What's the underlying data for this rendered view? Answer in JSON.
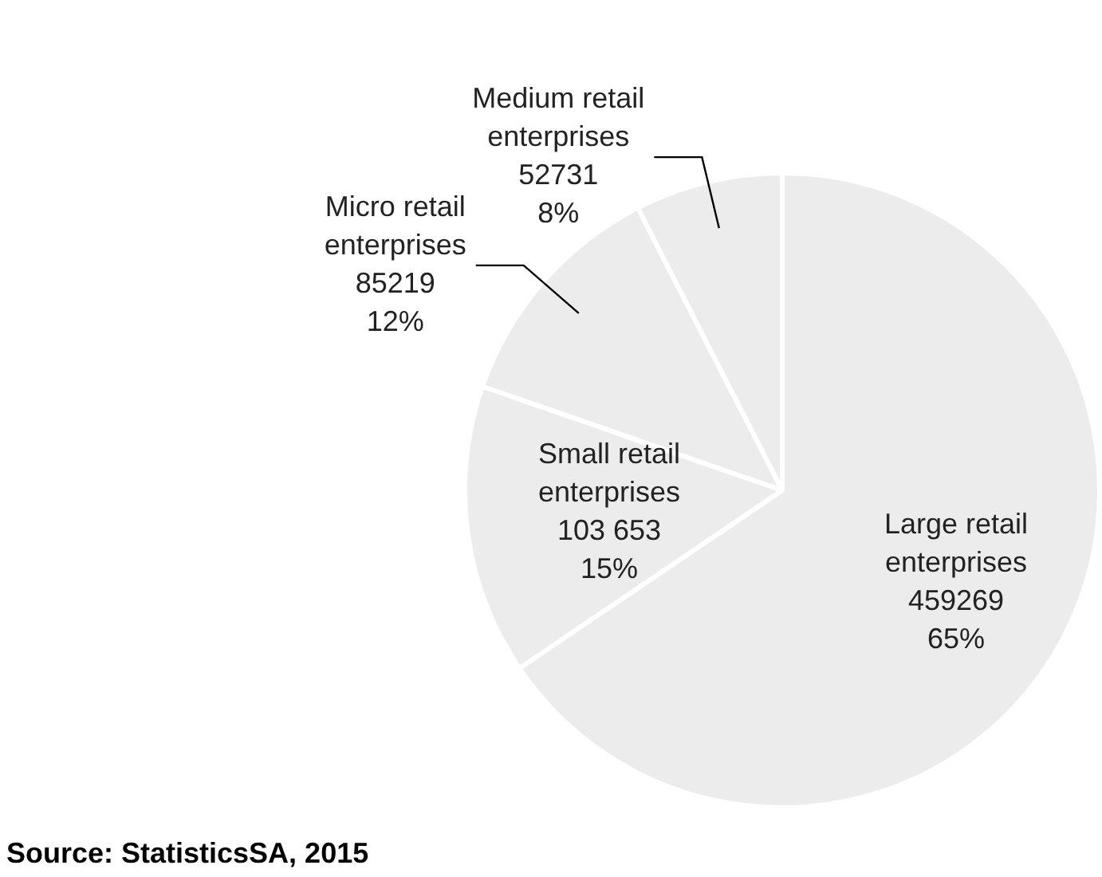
{
  "chart_data": {
    "type": "pie",
    "categories": [
      "Large retail enterprises",
      "Small retail enterprises",
      "Micro retail enterprises",
      "Medium retail enterprises"
    ],
    "values": [
      459269,
      103653,
      85219,
      52731
    ],
    "value_labels": [
      "459269\n65%",
      "103 653\n15%",
      "85219\n12%",
      "52731\n8%"
    ],
    "colors": [
      "#ececec",
      "#ececec",
      "#ececec",
      "#ececec"
    ],
    "legend": false,
    "annotations": [
      "Source: StatisticsSA, 2015"
    ]
  }
}
